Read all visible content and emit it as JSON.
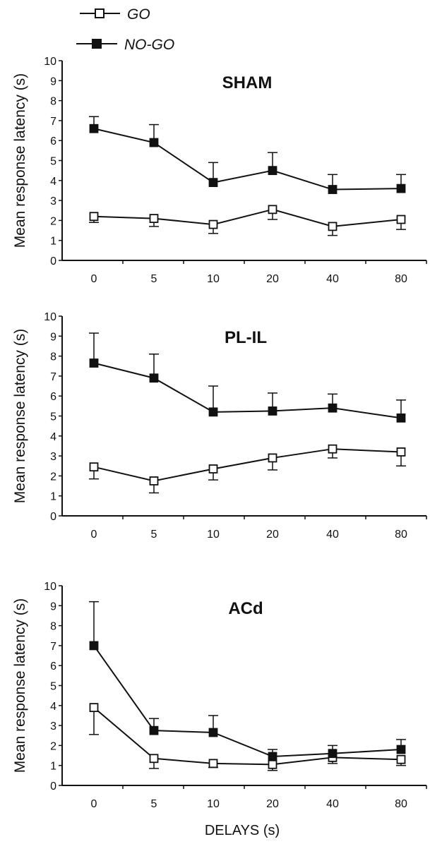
{
  "legend": {
    "go_label": "GO",
    "nogo_label": "NO-GO"
  },
  "figure": {
    "xlabel": "DELAYS (s)"
  },
  "chart_data": [
    {
      "type": "line",
      "title": "SHAM",
      "ylabel": "Mean response latency (s)",
      "xlabel": "",
      "categories": [
        "0",
        "5",
        "10",
        "20",
        "40",
        "80"
      ],
      "ylim": [
        0,
        10
      ],
      "yticks": [
        0,
        1,
        2,
        3,
        4,
        5,
        6,
        7,
        8,
        9,
        10
      ],
      "series": [
        {
          "name": "GO",
          "marker": "open-square",
          "values": [
            2.2,
            2.1,
            1.8,
            2.55,
            1.7,
            2.05
          ],
          "err": [
            0.3,
            0.4,
            0.45,
            0.5,
            0.45,
            0.5
          ]
        },
        {
          "name": "NO-GO",
          "marker": "filled-square",
          "values": [
            6.6,
            5.9,
            3.9,
            4.5,
            3.55,
            3.6
          ],
          "err": [
            0.6,
            0.9,
            1.0,
            0.9,
            0.75,
            0.7
          ]
        }
      ]
    },
    {
      "type": "line",
      "title": "PL-IL",
      "ylabel": "Mean response latency (s)",
      "xlabel": "",
      "categories": [
        "0",
        "5",
        "10",
        "20",
        "40",
        "80"
      ],
      "ylim": [
        0,
        10
      ],
      "yticks": [
        0,
        1,
        2,
        3,
        4,
        5,
        6,
        7,
        8,
        9,
        10
      ],
      "series": [
        {
          "name": "GO",
          "marker": "open-square",
          "values": [
            2.45,
            1.75,
            2.35,
            2.9,
            3.35,
            3.2
          ],
          "err": [
            0.6,
            0.6,
            0.55,
            0.6,
            0.45,
            0.7
          ]
        },
        {
          "name": "NO-GO",
          "marker": "filled-square",
          "values": [
            7.65,
            6.9,
            5.2,
            5.25,
            5.4,
            4.9
          ],
          "err": [
            1.5,
            1.2,
            1.3,
            0.9,
            0.7,
            0.9
          ]
        }
      ]
    },
    {
      "type": "line",
      "title": "ACd",
      "ylabel": "Mean response latency (s)",
      "xlabel": "DELAYS (s)",
      "categories": [
        "0",
        "5",
        "10",
        "20",
        "40",
        "80"
      ],
      "ylim": [
        0,
        10
      ],
      "yticks": [
        0,
        1,
        2,
        3,
        4,
        5,
        6,
        7,
        8,
        9,
        10
      ],
      "series": [
        {
          "name": "GO",
          "marker": "open-square",
          "values": [
            3.9,
            1.35,
            1.1,
            1.05,
            1.4,
            1.3
          ],
          "err": [
            1.35,
            0.5,
            0.2,
            0.3,
            0.3,
            0.3
          ]
        },
        {
          "name": "NO-GO",
          "marker": "filled-square",
          "values": [
            7.0,
            2.75,
            2.65,
            1.45,
            1.6,
            1.8
          ],
          "err": [
            2.2,
            0.6,
            0.85,
            0.35,
            0.4,
            0.5
          ]
        }
      ]
    }
  ]
}
